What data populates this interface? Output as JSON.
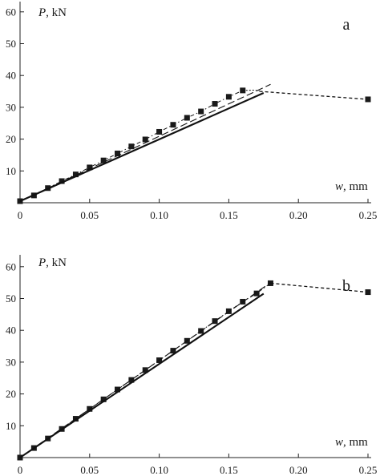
{
  "chart_data": [
    {
      "type": "line",
      "panel_label": "a",
      "xlabel": {
        "var": "w",
        "unit": ", mm"
      },
      "ylabel": {
        "var": "P",
        "unit": ", kN"
      },
      "xlim": [
        0,
        0.26
      ],
      "ylim": [
        0,
        62
      ],
      "x_ticks": [
        0,
        0.05,
        0.1,
        0.15,
        0.2,
        0.25
      ],
      "x_tick_labels": [
        "0",
        "0.05",
        "0.10",
        "0.15",
        "0.20",
        "0.25"
      ],
      "y_ticks": [
        10,
        20,
        30,
        40,
        50,
        60
      ],
      "y_tick_labels": [
        "10",
        "20",
        "30",
        "40",
        "50",
        "60"
      ],
      "series": [
        {
          "style": "square-markers-dashdot",
          "x": [
            0,
            0.01,
            0.02,
            0.03,
            0.04,
            0.05,
            0.06,
            0.07,
            0.08,
            0.09,
            0.1,
            0.11,
            0.12,
            0.13,
            0.14,
            0.15,
            0.16
          ],
          "y": [
            0.5,
            2.3,
            4.6,
            6.8,
            8.9,
            11.1,
            13.3,
            15.5,
            17.7,
            19.9,
            22.3,
            24.5,
            26.7,
            28.7,
            31.1,
            33.3,
            35.3
          ]
        },
        {
          "style": "dotted-continuation",
          "x": [
            0.16,
            0.168,
            0.172
          ],
          "y": [
            35.3,
            35.4,
            35.2
          ]
        },
        {
          "style": "dashed-post-peak",
          "x": [
            0.172,
            0.25
          ],
          "y": [
            35.0,
            32.5
          ]
        },
        {
          "style": "terminal-square",
          "x": [
            0.25
          ],
          "y": [
            32.5
          ]
        },
        {
          "style": "solid",
          "x": [
            0,
            0.175
          ],
          "y": [
            0.5,
            34.5
          ]
        },
        {
          "style": "dashed-long",
          "x": [
            0,
            0.18
          ],
          "y": [
            0.5,
            37.2
          ]
        }
      ]
    },
    {
      "type": "line",
      "panel_label": "b",
      "xlabel": {
        "var": "w",
        "unit": ", mm"
      },
      "ylabel": {
        "var": "P",
        "unit": ", kN"
      },
      "xlim": [
        0,
        0.26
      ],
      "ylim": [
        0,
        62
      ],
      "x_ticks": [
        0,
        0.05,
        0.1,
        0.15,
        0.2,
        0.25
      ],
      "x_tick_labels": [
        "0",
        "0.05",
        "0.10",
        "0.15",
        "0.20",
        "0.25"
      ],
      "y_ticks": [
        10,
        20,
        30,
        40,
        50,
        60
      ],
      "y_tick_labels": [
        "10",
        "20",
        "30",
        "40",
        "50",
        "60"
      ],
      "series": [
        {
          "style": "square-markers-dashdot",
          "x": [
            0,
            0.01,
            0.02,
            0.03,
            0.04,
            0.05,
            0.06,
            0.07,
            0.08,
            0.09,
            0.1,
            0.11,
            0.12,
            0.13,
            0.14,
            0.15,
            0.16,
            0.17,
            0.18
          ],
          "y": [
            0,
            3.0,
            6.0,
            9.0,
            12.2,
            15.3,
            18.3,
            21.4,
            24.4,
            27.5,
            30.6,
            33.6,
            36.7,
            39.8,
            42.9,
            46.0,
            49.0,
            51.6,
            54.8
          ]
        },
        {
          "style": "dashed-post-peak",
          "x": [
            0.18,
            0.25
          ],
          "y": [
            54.8,
            52.0
          ]
        },
        {
          "style": "terminal-square",
          "x": [
            0.25
          ],
          "y": [
            52.0
          ]
        },
        {
          "style": "solid",
          "x": [
            0,
            0.175
          ],
          "y": [
            0,
            51.5
          ]
        },
        {
          "style": "dashed-long",
          "x": [
            0,
            0.18
          ],
          "y": [
            0,
            55.0
          ]
        }
      ]
    }
  ]
}
